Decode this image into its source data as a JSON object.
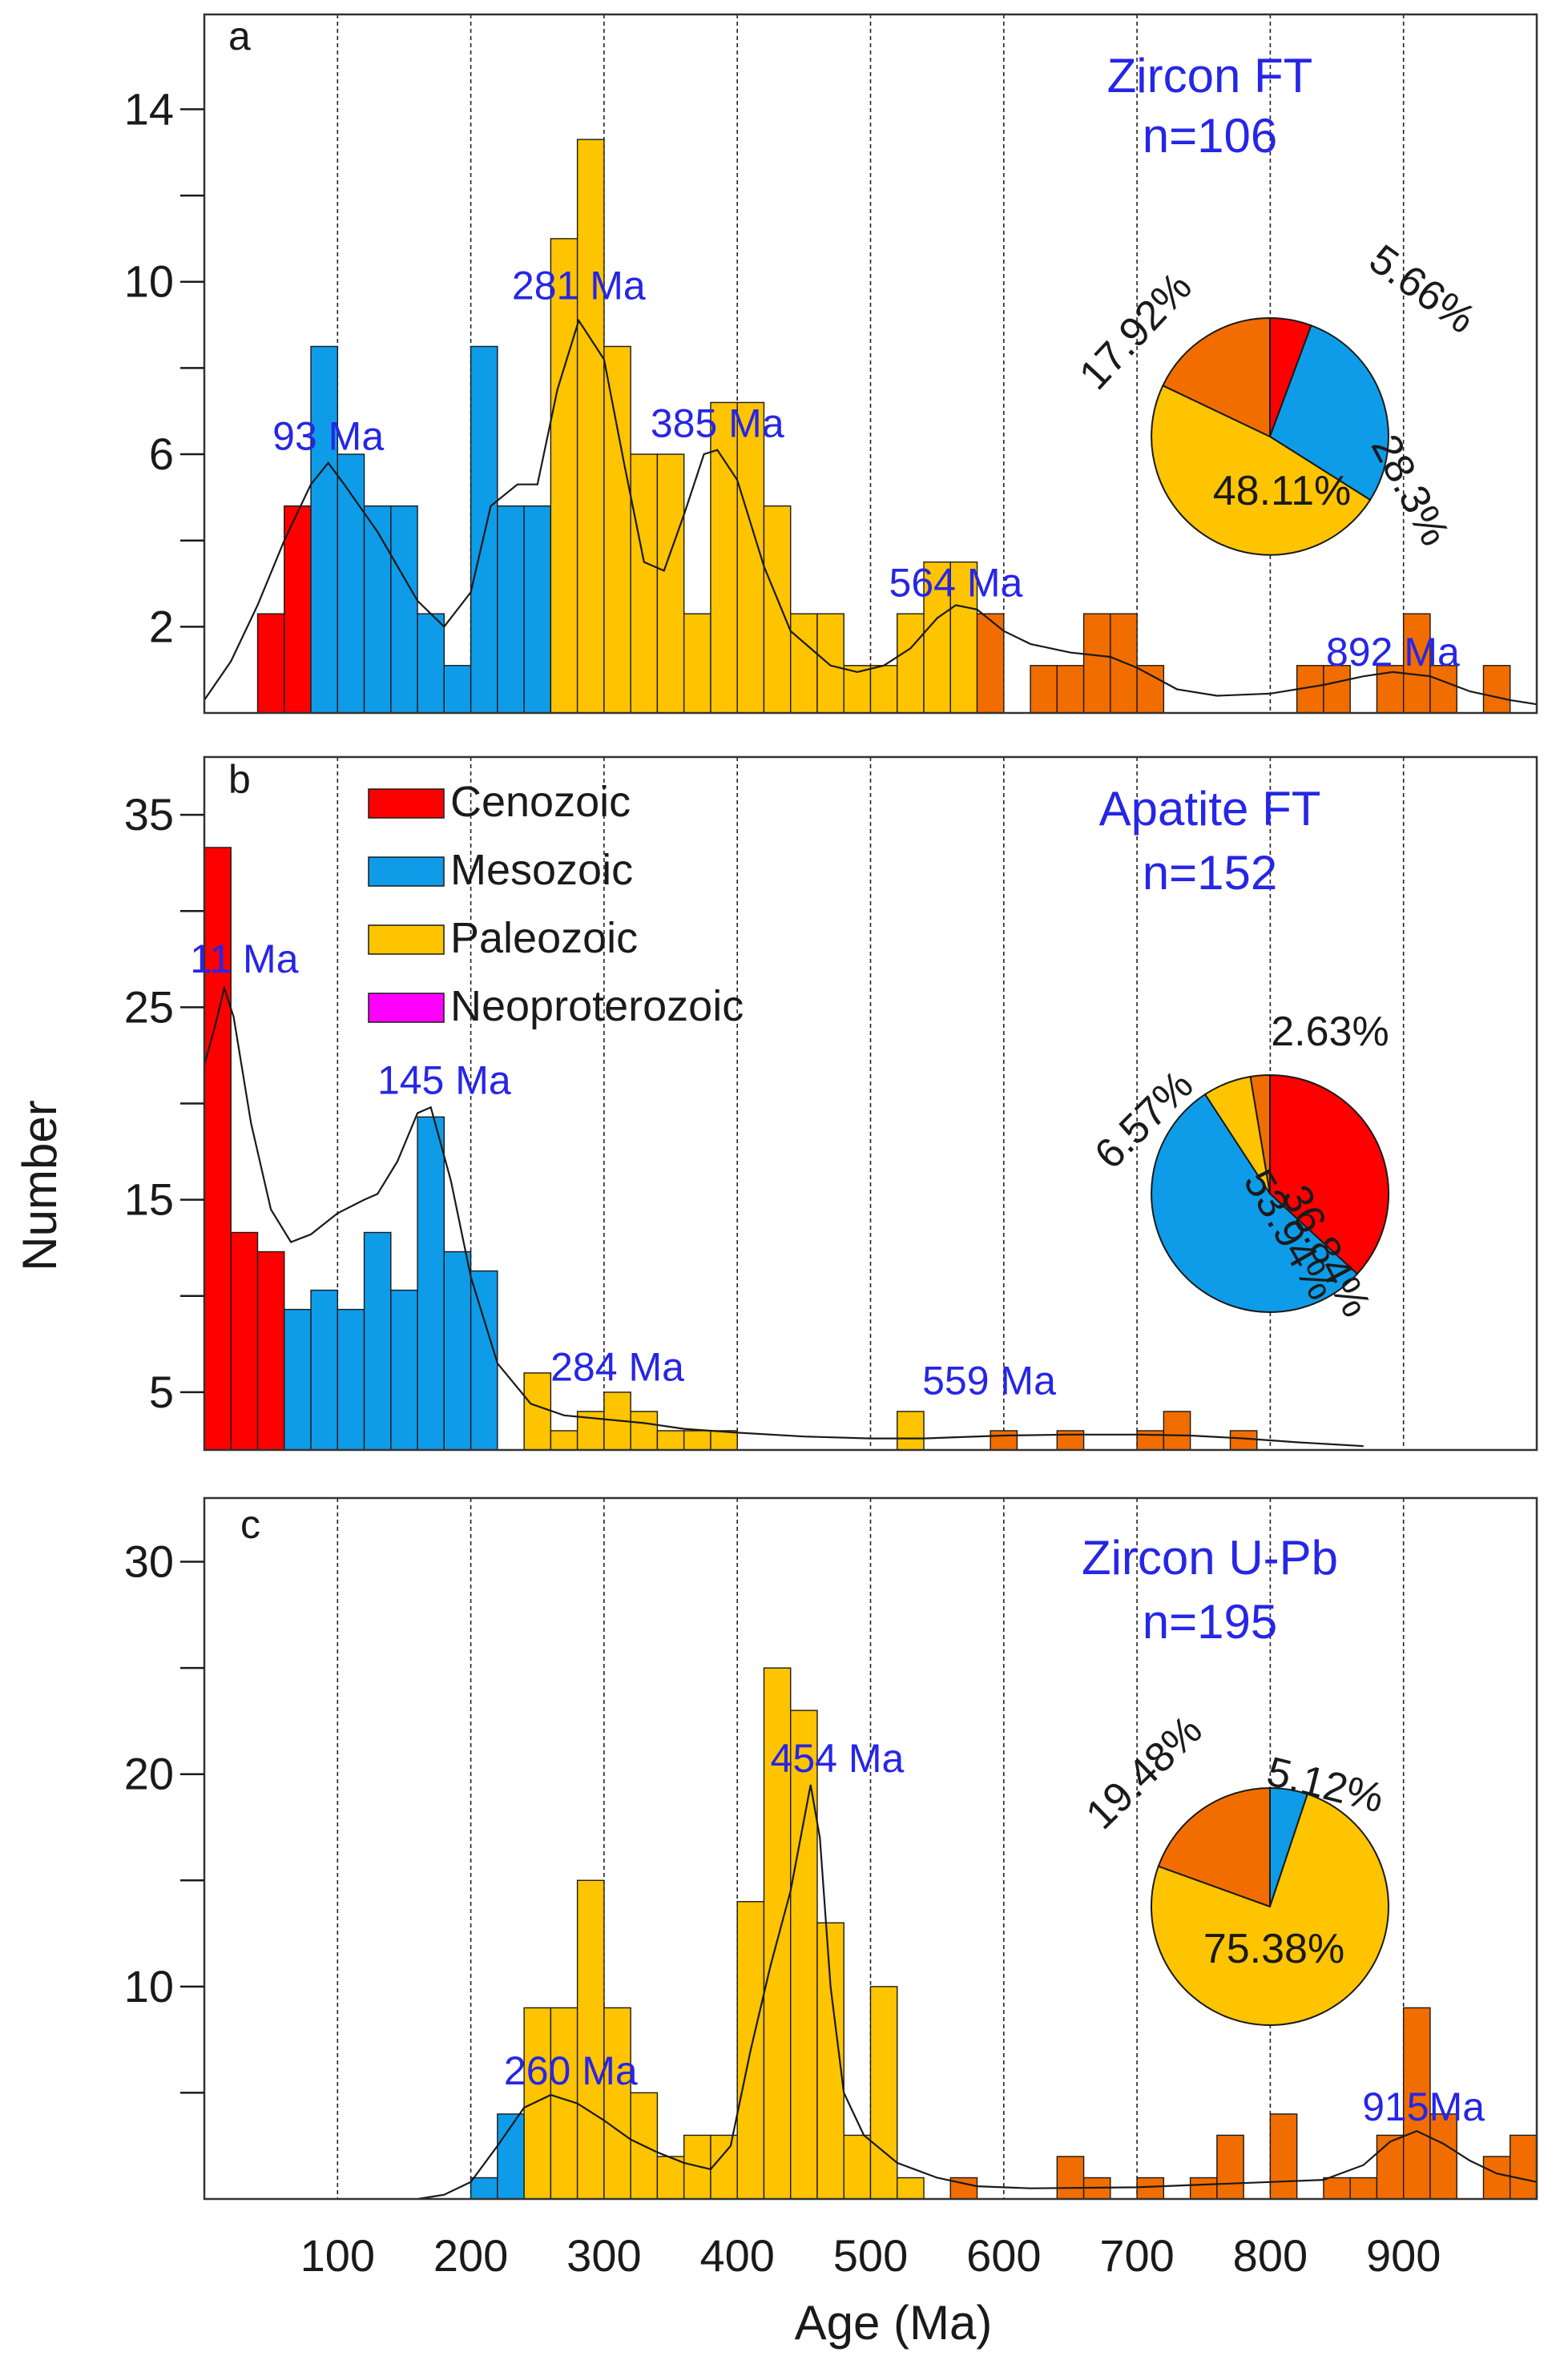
{
  "figure": {
    "ylabel": "Number",
    "xlabel": "Age (Ma)",
    "x_ticks": [
      "100",
      "200",
      "300",
      "400",
      "500",
      "600",
      "700",
      "800",
      "900"
    ]
  },
  "legend": {
    "items": [
      {
        "label": "Cenozoic",
        "color": "#ff0000"
      },
      {
        "label": "Mesozoic",
        "color": "#0e9ce8"
      },
      {
        "label": "Paleozoic",
        "color": "#ffc400"
      },
      {
        "label": "Neoproterozoic",
        "color": "#ff00ff"
      }
    ]
  },
  "chart_data": [
    {
      "type": "bar",
      "panel_label": "a",
      "title": "Zircon FT",
      "subtitle": "n=106",
      "xlim": [
        0,
        1000
      ],
      "ylim": [
        0,
        16.2
      ],
      "major_ticks": [
        2,
        6,
        10,
        14
      ],
      "minor_ticks": [
        4,
        8,
        12
      ],
      "bin_width": 20,
      "bars": [
        {
          "start": 40,
          "value": 2.3,
          "color": "#ff0000"
        },
        {
          "start": 60,
          "value": 4.8,
          "color": "#ff0000"
        },
        {
          "start": 80,
          "value": 8.5,
          "color": "#0e9ce8"
        },
        {
          "start": 100,
          "value": 6.0,
          "color": "#0e9ce8"
        },
        {
          "start": 120,
          "value": 4.8,
          "color": "#0e9ce8"
        },
        {
          "start": 140,
          "value": 4.8,
          "color": "#0e9ce8"
        },
        {
          "start": 160,
          "value": 2.3,
          "color": "#0e9ce8"
        },
        {
          "start": 180,
          "value": 1.1,
          "color": "#0e9ce8"
        },
        {
          "start": 200,
          "value": 8.5,
          "color": "#0e9ce8"
        },
        {
          "start": 220,
          "value": 4.8,
          "color": "#0e9ce8"
        },
        {
          "start": 240,
          "value": 4.8,
          "color": "#0e9ce8"
        },
        {
          "start": 260,
          "value": 11.0,
          "color": "#ffc400"
        },
        {
          "start": 280,
          "value": 13.3,
          "color": "#ffc400"
        },
        {
          "start": 300,
          "value": 8.5,
          "color": "#ffc400"
        },
        {
          "start": 320,
          "value": 6.0,
          "color": "#ffc400"
        },
        {
          "start": 340,
          "value": 6.0,
          "color": "#ffc400"
        },
        {
          "start": 360,
          "value": 2.3,
          "color": "#ffc400"
        },
        {
          "start": 380,
          "value": 7.2,
          "color": "#ffc400"
        },
        {
          "start": 400,
          "value": 7.2,
          "color": "#ffc400"
        },
        {
          "start": 420,
          "value": 4.8,
          "color": "#ffc400"
        },
        {
          "start": 440,
          "value": 2.3,
          "color": "#ffc400"
        },
        {
          "start": 460,
          "value": 2.3,
          "color": "#ffc400"
        },
        {
          "start": 480,
          "value": 1.1,
          "color": "#ffc400"
        },
        {
          "start": 500,
          "value": 1.1,
          "color": "#ffc400"
        },
        {
          "start": 520,
          "value": 2.3,
          "color": "#ffc400"
        },
        {
          "start": 540,
          "value": 3.5,
          "color": "#ffc400"
        },
        {
          "start": 560,
          "value": 3.5,
          "color": "#ffc400"
        },
        {
          "start": 580,
          "value": 2.3,
          "color": "#f26d00"
        },
        {
          "start": 620,
          "value": 1.1,
          "color": "#f26d00"
        },
        {
          "start": 640,
          "value": 1.1,
          "color": "#f26d00"
        },
        {
          "start": 660,
          "value": 2.3,
          "color": "#f26d00"
        },
        {
          "start": 680,
          "value": 2.3,
          "color": "#f26d00"
        },
        {
          "start": 700,
          "value": 1.1,
          "color": "#f26d00"
        },
        {
          "start": 820,
          "value": 1.1,
          "color": "#f26d00"
        },
        {
          "start": 840,
          "value": 1.1,
          "color": "#f26d00"
        },
        {
          "start": 880,
          "value": 1.1,
          "color": "#f26d00"
        },
        {
          "start": 900,
          "value": 2.3,
          "color": "#f26d00"
        },
        {
          "start": 920,
          "value": 1.1,
          "color": "#f26d00"
        },
        {
          "start": 960,
          "value": 1.1,
          "color": "#f26d00"
        }
      ],
      "curve": [
        [
          0,
          0.3
        ],
        [
          20,
          1.2
        ],
        [
          40,
          2.5
        ],
        [
          60,
          4.0
        ],
        [
          80,
          5.3
        ],
        [
          93,
          5.8
        ],
        [
          105,
          5.3
        ],
        [
          130,
          4.2
        ],
        [
          160,
          2.6
        ],
        [
          180,
          2.0
        ],
        [
          200,
          2.8
        ],
        [
          215,
          4.8
        ],
        [
          235,
          5.3
        ],
        [
          250,
          5.3
        ],
        [
          265,
          7.5
        ],
        [
          281,
          9.1
        ],
        [
          300,
          8.2
        ],
        [
          315,
          5.8
        ],
        [
          330,
          3.5
        ],
        [
          345,
          3.3
        ],
        [
          360,
          4.6
        ],
        [
          375,
          6.0
        ],
        [
          385,
          6.1
        ],
        [
          400,
          5.4
        ],
        [
          420,
          3.4
        ],
        [
          440,
          1.9
        ],
        [
          470,
          1.1
        ],
        [
          490,
          0.95
        ],
        [
          510,
          1.1
        ],
        [
          530,
          1.5
        ],
        [
          550,
          2.2
        ],
        [
          564,
          2.5
        ],
        [
          580,
          2.4
        ],
        [
          600,
          1.9
        ],
        [
          620,
          1.6
        ],
        [
          650,
          1.4
        ],
        [
          680,
          1.3
        ],
        [
          700,
          1.05
        ],
        [
          730,
          0.55
        ],
        [
          760,
          0.4
        ],
        [
          800,
          0.45
        ],
        [
          840,
          0.65
        ],
        [
          870,
          0.85
        ],
        [
          892,
          0.95
        ],
        [
          920,
          0.85
        ],
        [
          950,
          0.5
        ],
        [
          980,
          0.3
        ],
        [
          1000,
          0.2
        ]
      ],
      "peaks": [
        {
          "label": "93 Ma",
          "x": 93,
          "y": 6.1
        },
        {
          "label": "281 Ma",
          "x": 281,
          "y": 9.6
        },
        {
          "label": "385 Ma",
          "x": 385,
          "y": 6.4
        },
        {
          "label": "564 Ma",
          "x": 564,
          "y": 2.7
        },
        {
          "label": "892 Ma",
          "x": 892,
          "y": 1.1
        }
      ],
      "pie": {
        "slices": [
          {
            "label": "5.66%",
            "value": 5.66,
            "color": "#ff0000"
          },
          {
            "label": "28.3%",
            "value": 28.3,
            "color": "#0e9ce8"
          },
          {
            "label": "48.11%",
            "value": 48.11,
            "color": "#ffc400"
          },
          {
            "label": "17.92%",
            "value": 17.92,
            "color": "#f26d00"
          }
        ]
      }
    },
    {
      "type": "bar",
      "panel_label": "b",
      "title": "Apatite FT",
      "subtitle": "n=152",
      "xlim": [
        0,
        1000
      ],
      "ylim": [
        2,
        38
      ],
      "major_ticks": [
        5,
        15,
        25,
        35
      ],
      "minor_ticks": [
        10,
        20,
        30
      ],
      "bin_width": 20,
      "bars": [
        {
          "start": 0,
          "value": 33.3,
          "color": "#ff0000"
        },
        {
          "start": 20,
          "value": 13.3,
          "color": "#ff0000"
        },
        {
          "start": 40,
          "value": 12.3,
          "color": "#ff0000"
        },
        {
          "start": 60,
          "value": 9.3,
          "color": "#0e9ce8"
        },
        {
          "start": 80,
          "value": 10.3,
          "color": "#0e9ce8"
        },
        {
          "start": 100,
          "value": 9.3,
          "color": "#0e9ce8"
        },
        {
          "start": 120,
          "value": 13.3,
          "color": "#0e9ce8"
        },
        {
          "start": 140,
          "value": 10.3,
          "color": "#0e9ce8"
        },
        {
          "start": 160,
          "value": 19.3,
          "color": "#0e9ce8"
        },
        {
          "start": 180,
          "value": 12.3,
          "color": "#0e9ce8"
        },
        {
          "start": 200,
          "value": 11.3,
          "color": "#0e9ce8"
        },
        {
          "start": 240,
          "value": 6.0,
          "color": "#ffc400"
        },
        {
          "start": 260,
          "value": 3.0,
          "color": "#ffc400"
        },
        {
          "start": 280,
          "value": 4.0,
          "color": "#ffc400"
        },
        {
          "start": 300,
          "value": 5.0,
          "color": "#ffc400"
        },
        {
          "start": 320,
          "value": 4.0,
          "color": "#ffc400"
        },
        {
          "start": 340,
          "value": 3.0,
          "color": "#ffc400"
        },
        {
          "start": 360,
          "value": 3.0,
          "color": "#ffc400"
        },
        {
          "start": 380,
          "value": 3.0,
          "color": "#ffc400"
        },
        {
          "start": 520,
          "value": 4.0,
          "color": "#ffc400"
        },
        {
          "start": 590,
          "value": 3.0,
          "color": "#f26d00"
        },
        {
          "start": 640,
          "value": 3.0,
          "color": "#f26d00"
        },
        {
          "start": 700,
          "value": 3.0,
          "color": "#f26d00"
        },
        {
          "start": 720,
          "value": 4.0,
          "color": "#f26d00"
        },
        {
          "start": 770,
          "value": 3.0,
          "color": "#f26d00"
        }
      ],
      "curve": [
        [
          0,
          22
        ],
        [
          8,
          24
        ],
        [
          15,
          26
        ],
        [
          22,
          24.5
        ],
        [
          35,
          19
        ],
        [
          50,
          14.5
        ],
        [
          65,
          12.8
        ],
        [
          80,
          13.2
        ],
        [
          100,
          14.3
        ],
        [
          120,
          15
        ],
        [
          130,
          15.3
        ],
        [
          145,
          17
        ],
        [
          160,
          19.5
        ],
        [
          170,
          19.8
        ],
        [
          185,
          16
        ],
        [
          200,
          11
        ],
        [
          220,
          6.5
        ],
        [
          245,
          4.4
        ],
        [
          270,
          3.8
        ],
        [
          300,
          3.6
        ],
        [
          330,
          3.4
        ],
        [
          360,
          3.1
        ],
        [
          400,
          2.9
        ],
        [
          450,
          2.7
        ],
        [
          500,
          2.6
        ],
        [
          540,
          2.6
        ],
        [
          560,
          2.65
        ],
        [
          600,
          2.75
        ],
        [
          650,
          2.8
        ],
        [
          700,
          2.8
        ],
        [
          740,
          2.75
        ],
        [
          780,
          2.6
        ],
        [
          820,
          2.4
        ],
        [
          870,
          2.2
        ]
      ],
      "peaks": [
        {
          "label": "11 Ma",
          "x": 30,
          "y": 26.8
        },
        {
          "label": "145 Ma",
          "x": 180,
          "y": 20.5
        },
        {
          "label": "284 Ma",
          "x": 310,
          "y": 5.6
        },
        {
          "label": "559 Ma",
          "x": 589,
          "y": 4.9
        }
      ],
      "pie": {
        "slices": [
          {
            "label": "36.84%",
            "value": 36.84,
            "color": "#ff0000"
          },
          {
            "label": "53.94%",
            "value": 53.94,
            "color": "#0e9ce8"
          },
          {
            "label": "6.57%",
            "value": 6.57,
            "color": "#ffc400"
          },
          {
            "label": "2.63%",
            "value": 2.63,
            "color": "#f26d00"
          }
        ]
      }
    },
    {
      "type": "bar",
      "panel_label": "c",
      "title": "Zircon U-Pb",
      "subtitle": "n=195",
      "xlim": [
        0,
        1000
      ],
      "ylim": [
        0,
        33
      ],
      "major_ticks": [
        10,
        20,
        30
      ],
      "minor_ticks": [
        5,
        15,
        25
      ],
      "bin_width": 20,
      "bars": [
        {
          "start": 200,
          "value": 1,
          "color": "#0e9ce8"
        },
        {
          "start": 220,
          "value": 4,
          "color": "#0e9ce8"
        },
        {
          "start": 240,
          "value": 9,
          "color": "#ffc400"
        },
        {
          "start": 260,
          "value": 9,
          "color": "#ffc400"
        },
        {
          "start": 280,
          "value": 15,
          "color": "#ffc400"
        },
        {
          "start": 300,
          "value": 9,
          "color": "#ffc400"
        },
        {
          "start": 320,
          "value": 5,
          "color": "#ffc400"
        },
        {
          "start": 340,
          "value": 2,
          "color": "#ffc400"
        },
        {
          "start": 360,
          "value": 3,
          "color": "#ffc400"
        },
        {
          "start": 380,
          "value": 3,
          "color": "#ffc400"
        },
        {
          "start": 400,
          "value": 14,
          "color": "#ffc400"
        },
        {
          "start": 420,
          "value": 25,
          "color": "#ffc400"
        },
        {
          "start": 440,
          "value": 23,
          "color": "#ffc400"
        },
        {
          "start": 460,
          "value": 13,
          "color": "#ffc400"
        },
        {
          "start": 480,
          "value": 3,
          "color": "#ffc400"
        },
        {
          "start": 500,
          "value": 10,
          "color": "#ffc400"
        },
        {
          "start": 520,
          "value": 1,
          "color": "#ffc400"
        },
        {
          "start": 560,
          "value": 1,
          "color": "#f26d00"
        },
        {
          "start": 640,
          "value": 2,
          "color": "#f26d00"
        },
        {
          "start": 660,
          "value": 1,
          "color": "#f26d00"
        },
        {
          "start": 700,
          "value": 1,
          "color": "#f26d00"
        },
        {
          "start": 740,
          "value": 1,
          "color": "#f26d00"
        },
        {
          "start": 760,
          "value": 3,
          "color": "#f26d00"
        },
        {
          "start": 800,
          "value": 4,
          "color": "#f26d00"
        },
        {
          "start": 840,
          "value": 1,
          "color": "#f26d00"
        },
        {
          "start": 860,
          "value": 1,
          "color": "#f26d00"
        },
        {
          "start": 880,
          "value": 3,
          "color": "#f26d00"
        },
        {
          "start": 900,
          "value": 9,
          "color": "#f26d00"
        },
        {
          "start": 920,
          "value": 4,
          "color": "#f26d00"
        },
        {
          "start": 960,
          "value": 2,
          "color": "#f26d00"
        },
        {
          "start": 980,
          "value": 3,
          "color": "#f26d00"
        }
      ],
      "curve": [
        [
          160,
          0
        ],
        [
          180,
          0.2
        ],
        [
          200,
          0.8
        ],
        [
          220,
          2.5
        ],
        [
          240,
          4.3
        ],
        [
          260,
          4.9
        ],
        [
          280,
          4.5
        ],
        [
          300,
          3.7
        ],
        [
          320,
          2.8
        ],
        [
          340,
          2.2
        ],
        [
          360,
          1.7
        ],
        [
          380,
          1.4
        ],
        [
          395,
          2.5
        ],
        [
          410,
          7
        ],
        [
          425,
          11
        ],
        [
          440,
          14.5
        ],
        [
          455,
          19.5
        ],
        [
          462,
          17
        ],
        [
          470,
          10
        ],
        [
          480,
          5
        ],
        [
          495,
          3
        ],
        [
          520,
          1.7
        ],
        [
          550,
          1.0
        ],
        [
          580,
          0.6
        ],
        [
          620,
          0.5
        ],
        [
          700,
          0.55
        ],
        [
          760,
          0.7
        ],
        [
          800,
          0.8
        ],
        [
          840,
          0.9
        ],
        [
          870,
          1.6
        ],
        [
          890,
          2.7
        ],
        [
          910,
          3.2
        ],
        [
          930,
          2.6
        ],
        [
          950,
          1.8
        ],
        [
          970,
          1.2
        ],
        [
          1000,
          0.8
        ]
      ],
      "peaks": [
        {
          "label": "260 Ma",
          "x": 275,
          "y": 5.4
        },
        {
          "label": "454 Ma",
          "x": 475,
          "y": 20.1
        },
        {
          "label": "915Ma",
          "x": 915,
          "y": 3.7
        }
      ],
      "pie": {
        "slices": [
          {
            "label": "5.12%",
            "value": 5.12,
            "color": "#0e9ce8"
          },
          {
            "label": "75.38%",
            "value": 75.38,
            "color": "#ffc400"
          },
          {
            "label": "19.48%",
            "value": 19.48,
            "color": "#f26d00"
          }
        ]
      }
    }
  ]
}
